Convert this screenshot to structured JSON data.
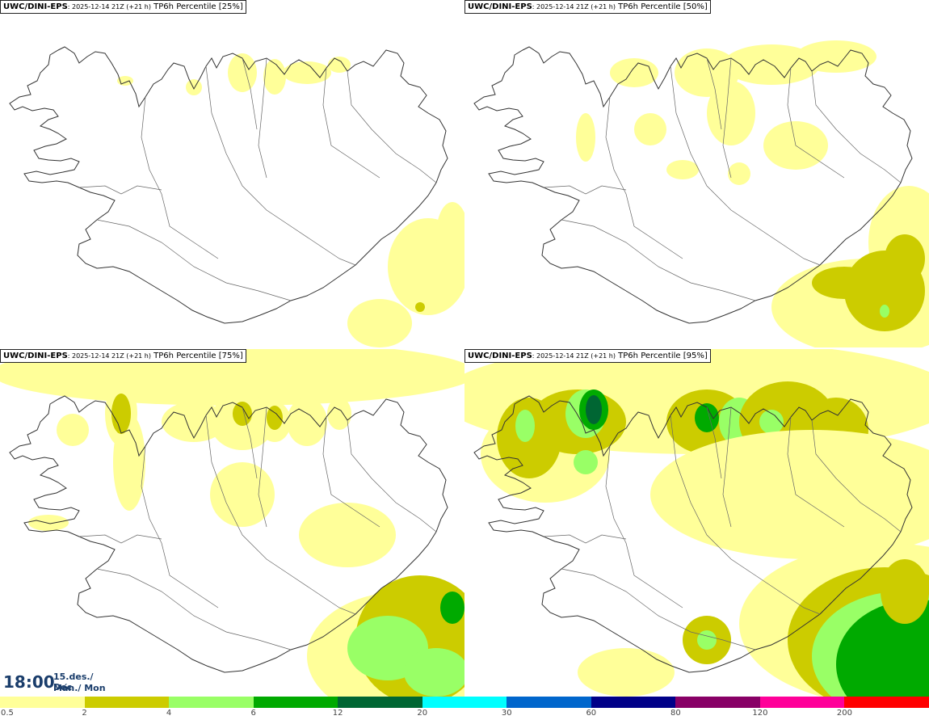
{
  "panels": [
    {
      "model": "UWC/DINI-EPS",
      "run": ": 2025-12-14 21Z (+21 h)",
      "product": "TP6h Percentile [25%]"
    },
    {
      "model": "UWC/DINI-EPS",
      "run": ": 2025-12-14 21Z (+21 h)",
      "product": "TP6h Percentile [50%]"
    },
    {
      "model": "UWC/DINI-EPS",
      "run": ": 2025-12-14 21Z (+21 h)",
      "product": "TP6h Percentile [75%]"
    },
    {
      "model": "UWC/DINI-EPS",
      "run": ": 2025-12-14 21Z (+21 h)",
      "product": "TP6h Percentile [95%]"
    }
  ],
  "valid_time": {
    "time": "18:00",
    "date": "15.des./ Dec",
    "day": "Mán./ Mon"
  },
  "legend": {
    "labels": [
      "0.5",
      "2",
      "4",
      "6",
      "12",
      "20",
      "30",
      "60",
      "80",
      "120",
      "200"
    ],
    "colors": [
      "#ffff99",
      "#cccc00",
      "#99ff66",
      "#00aa00",
      "#006633",
      "#00ffff",
      "#0066cc",
      "#000088",
      "#880066",
      "#ff0099",
      "#ff0000"
    ]
  }
}
